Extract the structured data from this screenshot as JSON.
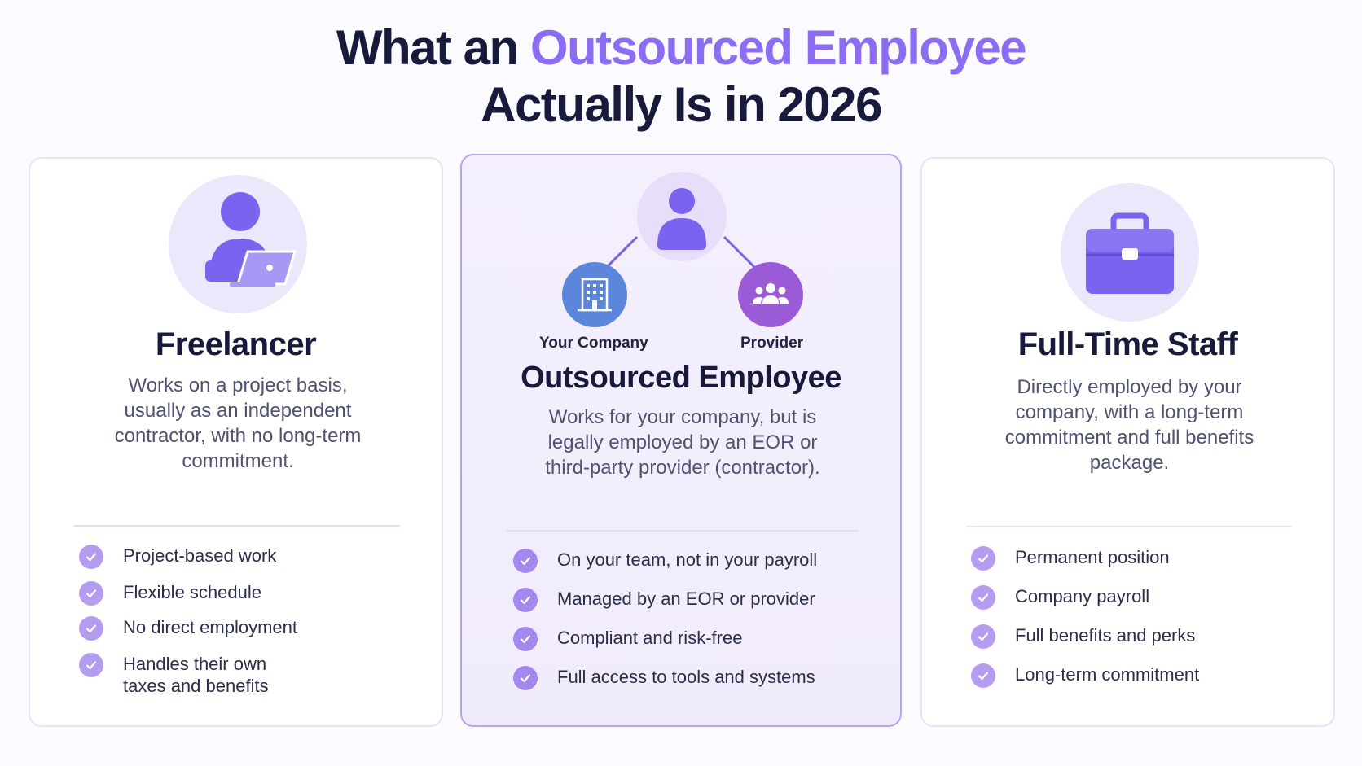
{
  "header": {
    "title_part1": "What an",
    "title_accent": "Outsourced Employee",
    "title_line2": "Actually Is in 2026"
  },
  "colors": {
    "accent": "#8b6cf2",
    "heading": "#171a3a",
    "check": "#b49df0",
    "building_node": "#5b86d9",
    "provider_node": "#9b5ad6"
  },
  "cards": {
    "freelancer": {
      "icon": "person-laptop-icon",
      "title": "Freelancer",
      "description": "Works on a project basis, usually as an independent contractor, with no long-term commitment.",
      "items": [
        "Project-based work",
        "Flexible schedule",
        "No direct employment",
        "Handles their own taxes and benefits"
      ]
    },
    "outsourced": {
      "icon": "person-network-icon",
      "node_left_label": "Your Company",
      "node_right_label": "Provider",
      "title": "Outsourced Employee",
      "description": "Works for your company, but is legally employed by an EOR or third-party provider (contractor).",
      "items": [
        "On your team, not in your payroll",
        "Managed by an EOR or provider",
        "Compliant and risk-free",
        "Full access to tools and systems"
      ]
    },
    "fulltime": {
      "icon": "briefcase-icon",
      "title": "Full-Time Staff",
      "description": "Directly employed by your company, with a long-term commitment and full benefits package.",
      "items": [
        "Permanent position",
        "Company payroll",
        "Full benefits and perks",
        "Long-term commitment"
      ]
    }
  }
}
